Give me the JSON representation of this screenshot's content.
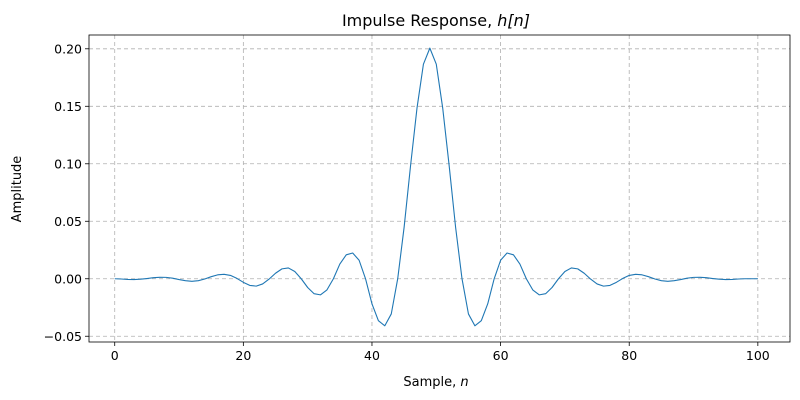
{
  "chart_data": {
    "type": "line",
    "title": "Impulse Response, h[n]",
    "title_parts": {
      "text": "Impulse Response, ",
      "math": "h[n]"
    },
    "xlabel": "Sample, n",
    "xlabel_parts": {
      "text": "Sample, ",
      "math": "n"
    },
    "ylabel": "Amplitude",
    "xlim": [
      -4,
      105
    ],
    "ylim": [
      -0.055,
      0.212
    ],
    "xticks": [
      0,
      20,
      40,
      60,
      80,
      100
    ],
    "xtick_labels": [
      "0",
      "20",
      "40",
      "60",
      "80",
      "100"
    ],
    "yticks": [
      -0.05,
      0.0,
      0.05,
      0.1,
      0.15,
      0.2
    ],
    "ytick_labels": [
      "−0.05",
      "0.00",
      "0.05",
      "0.10",
      "0.15",
      "0.20"
    ],
    "grid": true,
    "series": [
      {
        "color": "#1f77b4",
        "x": [
          0,
          1,
          2,
          3,
          4,
          5,
          6,
          7,
          8,
          9,
          10,
          11,
          12,
          13,
          14,
          15,
          16,
          17,
          18,
          19,
          20,
          21,
          22,
          23,
          24,
          25,
          26,
          27,
          28,
          29,
          30,
          31,
          32,
          33,
          34,
          35,
          36,
          37,
          38,
          39,
          40,
          41,
          42,
          43,
          44,
          45,
          46,
          47,
          48,
          49,
          50,
          51,
          52,
          53,
          54,
          55,
          56,
          57,
          58,
          59,
          60,
          61,
          62,
          63,
          64,
          65,
          66,
          67,
          68,
          69,
          70,
          71,
          72,
          73,
          74,
          75,
          76,
          77,
          78,
          79,
          80,
          81,
          82,
          83,
          84,
          85,
          86,
          87,
          88,
          89,
          90,
          91,
          92,
          93,
          94,
          95,
          96,
          97,
          98,
          99,
          100
        ],
        "y": [
          0.0,
          -0.0002,
          -0.0006,
          -0.0007,
          -0.0004,
          0.0002,
          0.0009,
          0.0013,
          0.0012,
          0.0005,
          -0.0007,
          -0.0017,
          -0.0022,
          -0.0017,
          -0.0002,
          0.0018,
          0.0034,
          0.0039,
          0.0029,
          0.0003,
          -0.0031,
          -0.0058,
          -0.0064,
          -0.0045,
          -0.0003,
          0.0048,
          0.0086,
          0.0094,
          0.0063,
          0.0,
          -0.0076,
          -0.013,
          -0.014,
          -0.0097,
          0.0,
          0.0128,
          0.0208,
          0.0224,
          0.0161,
          0.0,
          -0.0218,
          -0.0365,
          -0.0409,
          -0.0306,
          0.0,
          0.0449,
          0.0984,
          0.1484,
          0.1866,
          0.2006,
          0.1866,
          0.1484,
          0.0984,
          0.0449,
          0.0,
          -0.0306,
          -0.0409,
          -0.0365,
          -0.0218,
          0.0,
          0.0161,
          0.0224,
          0.0208,
          0.0128,
          0.0,
          -0.0097,
          -0.014,
          -0.013,
          -0.0076,
          0.0,
          0.0063,
          0.0094,
          0.0086,
          0.0048,
          -0.0003,
          -0.0045,
          -0.0064,
          -0.0058,
          -0.0031,
          0.0003,
          0.0029,
          0.0039,
          0.0034,
          0.0018,
          -0.0002,
          -0.0017,
          -0.0022,
          -0.0017,
          -0.0007,
          0.0005,
          0.0012,
          0.0013,
          0.0009,
          0.0002,
          -0.0004,
          -0.0007,
          -0.0006,
          -0.0002,
          0.0,
          0.0,
          0.0
        ]
      }
    ]
  }
}
